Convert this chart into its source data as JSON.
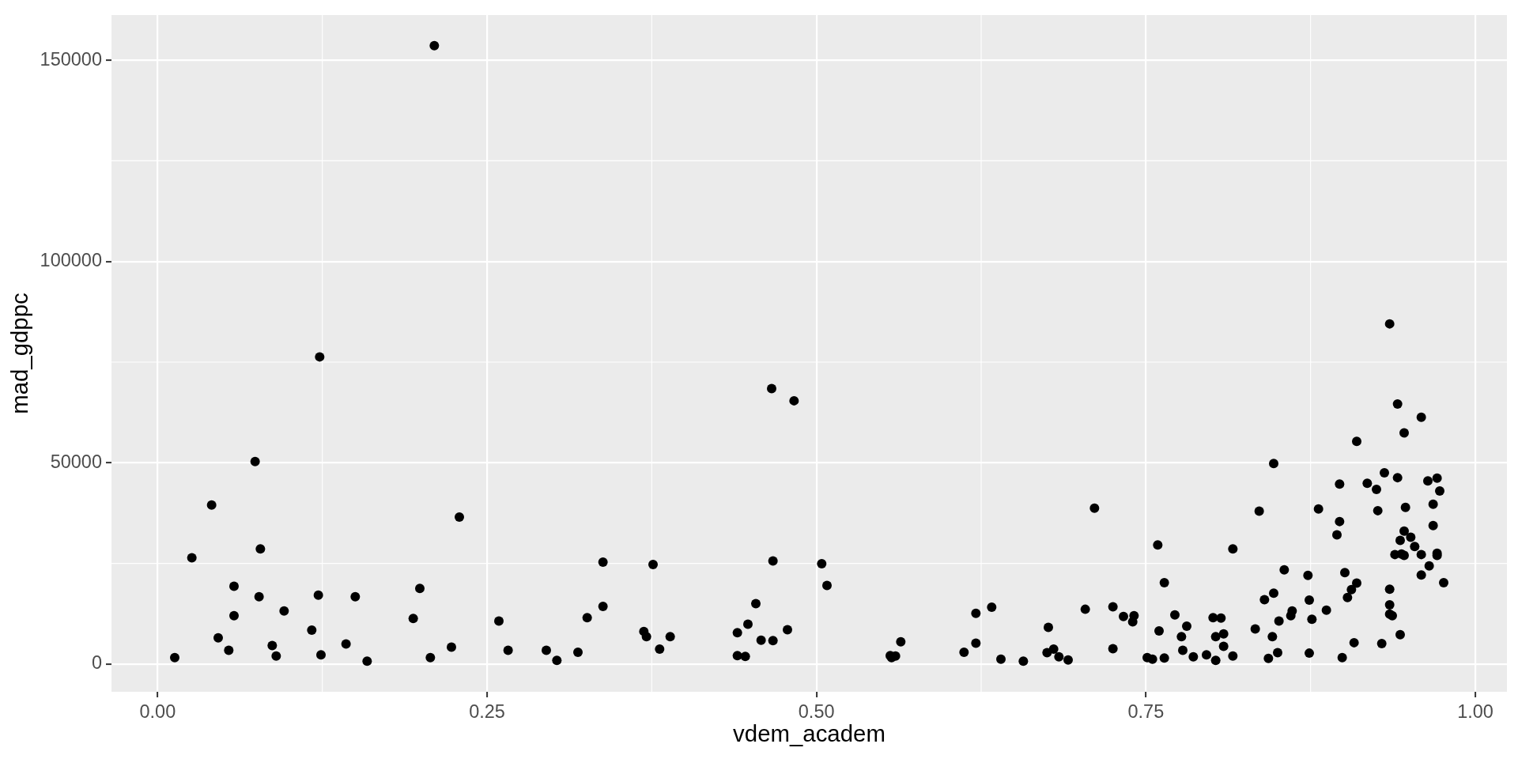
{
  "chart_data": {
    "type": "scatter",
    "xlabel": "vdem_academ",
    "ylabel": "mad_gdppc",
    "x": [
      0.123,
      0.074,
      0.041,
      0.229,
      0.078,
      0.026,
      0.058,
      0.077,
      0.122,
      0.15,
      0.199,
      0.058,
      0.096,
      0.194,
      0.117,
      0.046,
      0.054,
      0.087,
      0.09,
      0.143,
      0.124,
      0.159,
      0.207,
      0.223,
      0.013,
      0.21,
      0.466,
      0.483,
      0.338,
      0.376,
      0.467,
      0.504,
      0.508,
      0.454,
      0.259,
      0.326,
      0.338,
      0.369,
      0.371,
      0.389,
      0.381,
      0.44,
      0.448,
      0.478,
      0.458,
      0.467,
      0.44,
      0.446,
      0.266,
      0.295,
      0.303,
      0.319,
      0.711,
      0.759,
      0.764,
      0.564,
      0.556,
      0.557,
      0.56,
      0.612,
      0.621,
      0.621,
      0.633,
      0.64,
      0.657,
      0.676,
      0.675,
      0.68,
      0.684,
      0.691,
      0.704,
      0.725,
      0.725,
      0.733,
      0.741,
      0.74,
      0.751,
      0.755,
      0.764,
      0.76,
      0.772,
      0.781,
      0.777,
      0.778,
      0.786,
      0.796,
      0.801,
      0.803,
      0.803,
      0.807,
      0.809,
      0.809,
      0.816,
      0.816,
      0.836,
      0.847,
      0.855,
      0.847,
      0.84,
      0.833,
      0.846,
      0.851,
      0.86,
      0.861,
      0.843,
      0.85,
      0.873,
      0.874,
      0.876,
      0.874,
      0.887,
      0.881,
      0.897,
      0.897,
      0.895,
      0.901,
      0.91,
      0.906,
      0.903,
      0.908,
      0.899,
      0.91,
      0.918,
      0.935,
      0.941,
      0.959,
      0.946,
      0.931,
      0.925,
      0.941,
      0.964,
      0.971,
      0.973,
      0.926,
      0.947,
      0.968,
      0.968,
      0.946,
      0.951,
      0.943,
      0.954,
      0.939,
      0.944,
      0.946,
      0.959,
      0.971,
      0.971,
      0.965,
      0.959,
      0.976,
      0.935,
      0.935,
      0.935,
      0.937,
      0.943,
      0.929
    ],
    "values": [
      76300,
      50300,
      39500,
      36500,
      28600,
      26400,
      19300,
      16700,
      17100,
      16700,
      18800,
      12000,
      13200,
      11300,
      8400,
      6500,
      3400,
      4600,
      2000,
      5000,
      2300,
      700,
      1600,
      4200,
      1600,
      153600,
      68400,
      65400,
      25300,
      24700,
      25600,
      24900,
      19500,
      15000,
      10700,
      11500,
      14300,
      8100,
      6800,
      6800,
      3700,
      7800,
      9900,
      8500,
      5900,
      5800,
      2100,
      1900,
      3400,
      3400,
      900,
      2900,
      38700,
      29600,
      20200,
      5500,
      2100,
      1600,
      2000,
      2900,
      5200,
      12600,
      14100,
      1200,
      700,
      9100,
      2800,
      3700,
      1800,
      1000,
      13600,
      14200,
      3800,
      11800,
      12000,
      10500,
      1600,
      1200,
      1500,
      8200,
      12200,
      9400,
      6800,
      3400,
      1800,
      2300,
      11500,
      6800,
      900,
      11400,
      7500,
      4400,
      2000,
      28600,
      38000,
      49800,
      23400,
      17600,
      16000,
      8700,
      6800,
      10700,
      12000,
      13200,
      1400,
      2800,
      22000,
      15900,
      11100,
      2700,
      13400,
      38500,
      44700,
      35400,
      32100,
      22700,
      20100,
      18500,
      16500,
      5300,
      1600,
      55300,
      44900,
      84500,
      64600,
      61300,
      57400,
      47500,
      43400,
      46300,
      45500,
      46200,
      43000,
      38100,
      38900,
      39700,
      34400,
      33000,
      31500,
      30700,
      29200,
      27200,
      27300,
      27000,
      27200,
      27500,
      27000,
      24400,
      22100,
      20200,
      18600,
      14700,
      12400,
      12000,
      7300,
      5100
    ],
    "color": "#000000",
    "marker": "circle",
    "xlim": [
      -0.035,
      1.024
    ],
    "ylim": [
      -6900,
      161200
    ],
    "xticks": [
      {
        "value": 0,
        "label": "0.00"
      },
      0.25,
      {
        "value": 0.5,
        "label": "0.50"
      },
      0.75,
      {
        "value": 1,
        "label": "1.00"
      }
    ],
    "yticks": [
      0,
      50000,
      100000,
      150000
    ],
    "grid": true
  }
}
